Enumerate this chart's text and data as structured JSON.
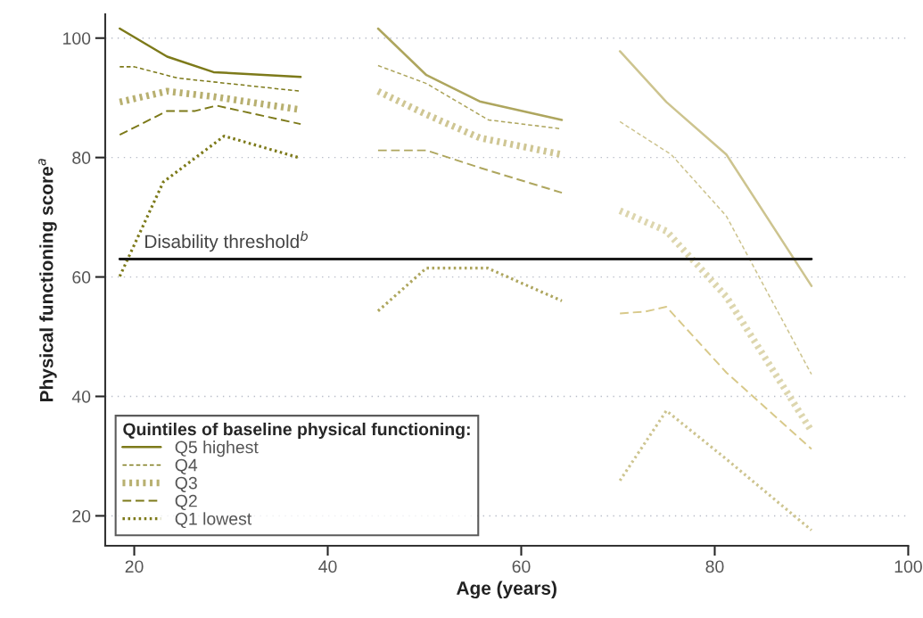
{
  "chart_data": {
    "type": "line",
    "xlabel": "Age (years)",
    "ylabel": "Physical functioning score$^{a}$",
    "legend_title": "Quintiles of baseline physical functioning:",
    "xlim": [
      17,
      100
    ],
    "xticks": [
      20,
      40,
      60,
      80,
      100
    ],
    "ylim": [
      15,
      104
    ],
    "yticks": [
      20,
      40,
      60,
      80,
      100
    ],
    "grid": "y",
    "legend": "bottom left",
    "ref_lines": [
      {
        "axis": "y",
        "value": 63,
        "label": "Disability threshold$^{b}$",
        "color": "#1a1a1a",
        "line_style": "solid"
      }
    ],
    "series": [
      {
        "name": "Q5 highest",
        "color": "#7d7a1a",
        "line_style": "solid",
        "x": [
          18.5,
          23.4,
          28.2,
          37.2
        ],
        "values": [
          101.6,
          96.9,
          94.3,
          93.5
        ]
      },
      {
        "name": "Q4",
        "color": "#7d7a1a",
        "line_style": "dashed",
        "x": [
          18.5,
          20,
          24.5,
          37.2
        ],
        "values": [
          95.2,
          95.2,
          93.3,
          91.1
        ]
      },
      {
        "name": "Q3",
        "color": "#b8b070",
        "line_style": "dotted",
        "x": [
          18.5,
          23.4,
          28.2,
          37.2
        ],
        "values": [
          89.3,
          91.1,
          90.2,
          88.0
        ]
      },
      {
        "name": "Q2",
        "color": "#7d7a1a",
        "line_style": "dashed",
        "x": [
          18.5,
          23.4,
          26.3,
          28.5,
          37.2
        ],
        "values": [
          83.8,
          87.8,
          87.8,
          88.7,
          85.6
        ]
      },
      {
        "name": "Q1 lowest",
        "color": "#7d7a1a",
        "line_style": "dotted",
        "x": [
          18.5,
          23.0,
          29.3,
          37.2
        ],
        "values": [
          60.1,
          75.9,
          83.6,
          79.9
        ]
      },
      {
        "color": "#aea65e",
        "line_style": "solid",
        "x": [
          45.2,
          50.2,
          55.7,
          64.2
        ],
        "values": [
          101.6,
          93.8,
          89.4,
          86.3
        ]
      },
      {
        "color": "#aea65e",
        "line_style": "dashed",
        "x": [
          45.2,
          50.2,
          56.6,
          64.2
        ],
        "values": [
          95.4,
          92.4,
          86.3,
          84.8
        ]
      },
      {
        "color": "#cfc693",
        "line_style": "dotted",
        "x": [
          45.2,
          50.2,
          55.7,
          64.2
        ],
        "values": [
          91.1,
          87.2,
          83.3,
          80.5
        ]
      },
      {
        "color": "#aea65e",
        "line_style": "dashed",
        "x": [
          45.2,
          50.2,
          55.7,
          64.2
        ],
        "values": [
          81.2,
          81.2,
          78.3,
          74.1
        ]
      },
      {
        "color": "#aea65e",
        "line_style": "dotted",
        "x": [
          45.2,
          50.2,
          56.5,
          64.2
        ],
        "values": [
          54.3,
          61.5,
          61.5,
          56.0
        ]
      },
      {
        "color": "#cdc48f",
        "line_style": "solid",
        "x": [
          70.2,
          75.0,
          81.2,
          90.0
        ],
        "values": [
          97.8,
          89.3,
          80.5,
          58.5
        ]
      },
      {
        "color": "#cdc48f",
        "line_style": "dashed",
        "x": [
          70.2,
          75.5,
          81.2,
          90.0
        ],
        "values": [
          86.0,
          80.5,
          70.2,
          43.7
        ]
      },
      {
        "color": "#ddd6ae",
        "line_style": "dotted",
        "x": [
          70.2,
          75.0,
          81.2,
          90.0
        ],
        "values": [
          71.1,
          67.7,
          56.7,
          34.2
        ]
      },
      {
        "color": "#d8c98a",
        "line_style": "dashed",
        "x": [
          70.2,
          72.8,
          75.0,
          81.2,
          90.0
        ],
        "values": [
          53.9,
          54.2,
          55.0,
          44.0,
          31.2
        ]
      },
      {
        "color": "#cdc48f",
        "line_style": "dotted",
        "x": [
          70.2,
          75.0,
          81.2,
          90.0
        ],
        "values": [
          25.9,
          37.6,
          29.5,
          17.6
        ]
      }
    ]
  }
}
